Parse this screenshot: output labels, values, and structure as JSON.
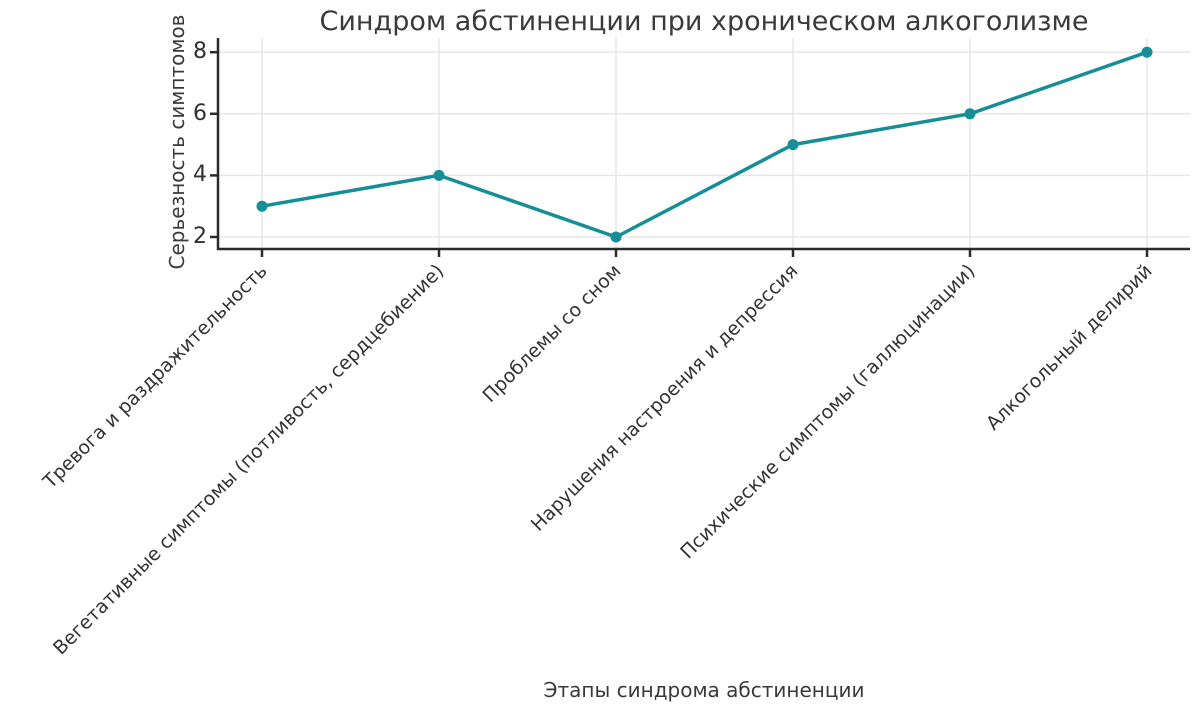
{
  "chart_data": {
    "type": "line",
    "title": "Синдром абстиненции при хроническом алкоголизме",
    "xlabel": "Этапы синдрома абстиненции",
    "ylabel": "Серьезность симптомов",
    "categories": [
      "Тревога и раздражительность",
      "Вегетативные симптомы (потливость, сердцебиение)",
      "Проблемы со сном",
      "Нарушения настроения и депрессия",
      "Психические симптомы (галлюцинации)",
      "Алкогольный делирий"
    ],
    "values": [
      3,
      4,
      2,
      5,
      6,
      8
    ],
    "yticks": [
      2,
      4,
      6,
      8
    ],
    "ylim": [
      1.6,
      8.4
    ],
    "grid": true,
    "legend": "none",
    "marker": "circle",
    "line_color": "#168e98",
    "spine_color": "#2b2b2b",
    "grid_color": "#e7e7e7"
  }
}
